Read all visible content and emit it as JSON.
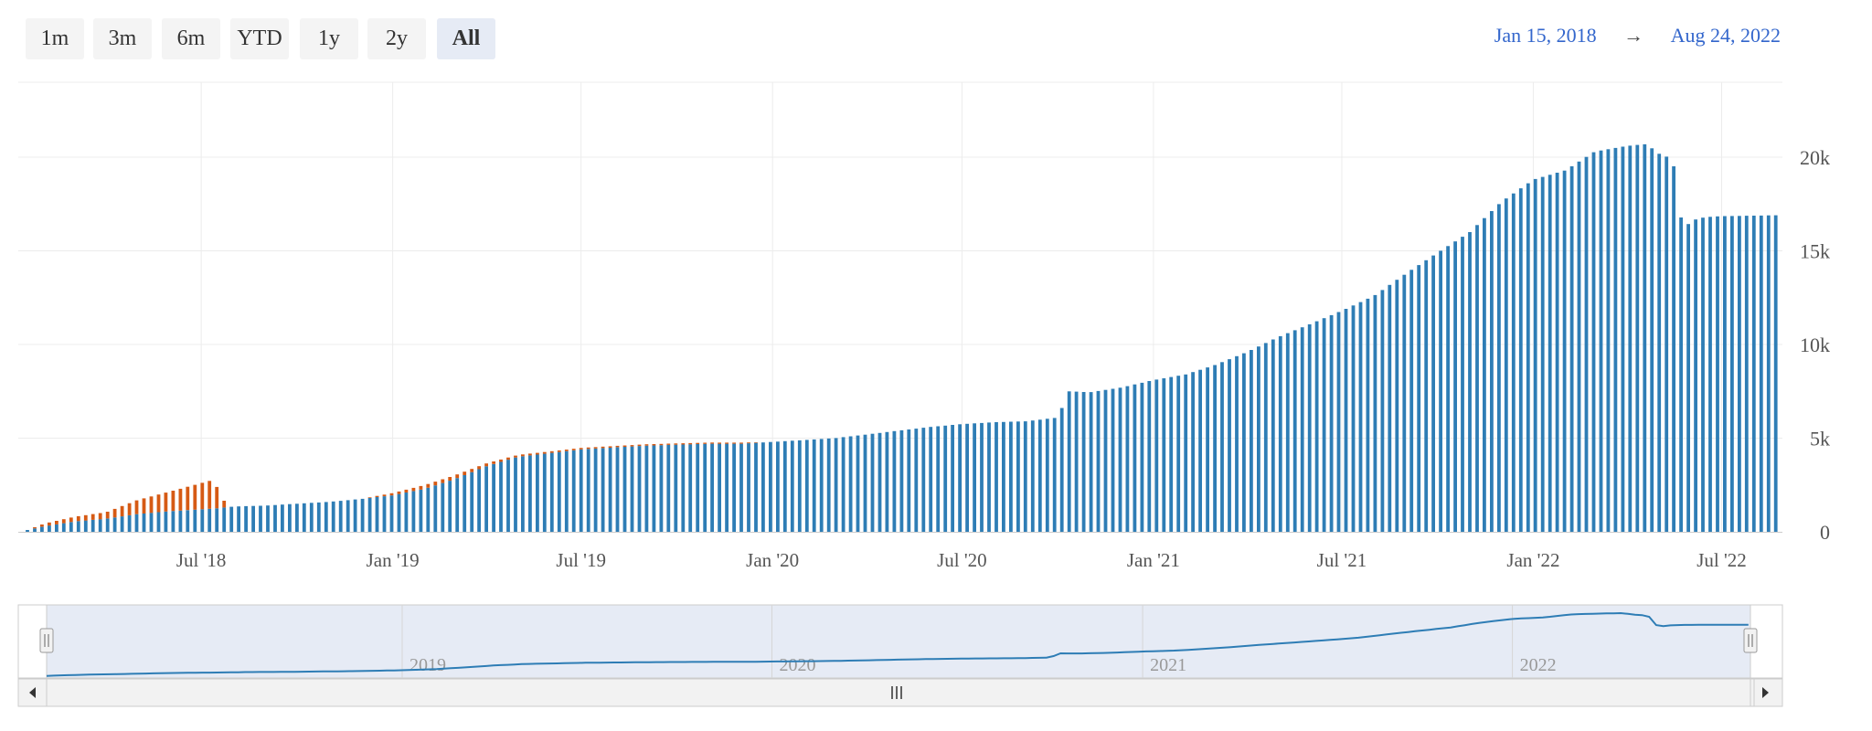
{
  "range_selector": {
    "buttons": [
      {
        "label": "1m",
        "active": false
      },
      {
        "label": "3m",
        "active": false
      },
      {
        "label": "6m",
        "active": false
      },
      {
        "label": "YTD",
        "active": false
      },
      {
        "label": "1y",
        "active": false
      },
      {
        "label": "2y",
        "active": false
      },
      {
        "label": "All",
        "active": true
      }
    ],
    "from": "Jan 15, 2018",
    "arrow": "→",
    "to": "Aug 24, 2022"
  },
  "colors": {
    "primary_series": "#2e7db5",
    "secondary_series": "#d65a14",
    "navigator_fill": "#e6ebf5",
    "navigator_line": "#2e7db5",
    "link_text": "#3366cc"
  },
  "navigator": {
    "year_labels": [
      "2019",
      "2020",
      "2021",
      "2022"
    ],
    "scrollbar_grip": "|||",
    "left_arrow": "◂",
    "right_arrow": "▸"
  },
  "chart_data": {
    "type": "bar",
    "stacked": true,
    "x_range": [
      "2018-01-15",
      "2022-08-24"
    ],
    "y_range": [
      0,
      24000
    ],
    "y_axis_position": "right",
    "grid": true,
    "x_ticks": [
      "Jul '18",
      "Jan '19",
      "Jul '19",
      "Jan '20",
      "Jul '20",
      "Jan '21",
      "Jul '21",
      "Jan '22",
      "Jul '22"
    ],
    "y_ticks": [
      {
        "label": "0",
        "value": 0
      },
      {
        "label": "5k",
        "value": 5000
      },
      {
        "label": "10k",
        "value": 10000
      },
      {
        "label": "15k",
        "value": 15000
      },
      {
        "label": "20k",
        "value": 20000
      }
    ],
    "series": [
      {
        "key": "primary",
        "points": [
          [
            "2018-01-15",
            100
          ],
          [
            "2018-02-01",
            300
          ],
          [
            "2018-03-01",
            550
          ],
          [
            "2018-04-01",
            700
          ],
          [
            "2018-05-01",
            950
          ],
          [
            "2018-06-01",
            1100
          ],
          [
            "2018-07-15",
            1250
          ],
          [
            "2018-08-01",
            1350
          ],
          [
            "2018-09-01",
            1400
          ],
          [
            "2018-10-01",
            1500
          ],
          [
            "2018-11-01",
            1600
          ],
          [
            "2018-12-01",
            1750
          ],
          [
            "2019-01-01",
            1950
          ],
          [
            "2019-02-01",
            2300
          ],
          [
            "2019-03-01",
            2800
          ],
          [
            "2019-04-01",
            3500
          ],
          [
            "2019-05-01",
            4000
          ],
          [
            "2019-06-01",
            4200
          ],
          [
            "2019-07-01",
            4400
          ],
          [
            "2019-08-01",
            4500
          ],
          [
            "2019-09-01",
            4600
          ],
          [
            "2019-10-01",
            4650
          ],
          [
            "2019-11-01",
            4700
          ],
          [
            "2019-12-01",
            4700
          ],
          [
            "2020-01-01",
            4800
          ],
          [
            "2020-02-01",
            4900
          ],
          [
            "2020-03-01",
            5000
          ],
          [
            "2020-04-01",
            5200
          ],
          [
            "2020-05-01",
            5400
          ],
          [
            "2020-06-01",
            5600
          ],
          [
            "2020-07-01",
            5750
          ],
          [
            "2020-08-01",
            5850
          ],
          [
            "2020-09-01",
            5900
          ],
          [
            "2020-10-01",
            6100
          ],
          [
            "2020-10-12",
            7500
          ],
          [
            "2020-11-01",
            7450
          ],
          [
            "2020-12-01",
            7700
          ],
          [
            "2021-01-01",
            8100
          ],
          [
            "2021-02-01",
            8400
          ],
          [
            "2021-03-01",
            8900
          ],
          [
            "2021-04-01",
            9600
          ],
          [
            "2021-05-01",
            10400
          ],
          [
            "2021-06-01",
            11100
          ],
          [
            "2021-07-01",
            11800
          ],
          [
            "2021-08-01",
            12600
          ],
          [
            "2021-09-01",
            13800
          ],
          [
            "2021-10-01",
            14900
          ],
          [
            "2021-11-01",
            16000
          ],
          [
            "2021-12-01",
            17600
          ],
          [
            "2022-01-01",
            18800
          ],
          [
            "2022-02-01",
            19300
          ],
          [
            "2022-03-01",
            20300
          ],
          [
            "2022-04-01",
            20600
          ],
          [
            "2022-04-20",
            20700
          ],
          [
            "2022-05-01",
            20200
          ],
          [
            "2022-05-15",
            19900
          ],
          [
            "2022-05-25",
            16000
          ],
          [
            "2022-06-01",
            16600
          ],
          [
            "2022-06-15",
            16800
          ],
          [
            "2022-07-01",
            16850
          ],
          [
            "2022-08-24",
            16900
          ]
        ]
      },
      {
        "key": "secondary",
        "points": [
          [
            "2018-01-15",
            0
          ],
          [
            "2018-02-01",
            150
          ],
          [
            "2018-03-01",
            250
          ],
          [
            "2018-04-01",
            350
          ],
          [
            "2018-05-01",
            750
          ],
          [
            "2018-06-01",
            1050
          ],
          [
            "2018-07-10",
            1500
          ],
          [
            "2018-07-20",
            900
          ],
          [
            "2018-07-25",
            0
          ],
          [
            "2018-12-01",
            0
          ],
          [
            "2019-01-01",
            120
          ],
          [
            "2019-02-01",
            200
          ],
          [
            "2019-03-01",
            200
          ],
          [
            "2019-04-01",
            150
          ],
          [
            "2019-05-01",
            100
          ],
          [
            "2019-07-01",
            80
          ],
          [
            "2019-12-01",
            60
          ],
          [
            "2020-01-01",
            0
          ],
          [
            "2022-08-24",
            0
          ]
        ]
      }
    ]
  }
}
